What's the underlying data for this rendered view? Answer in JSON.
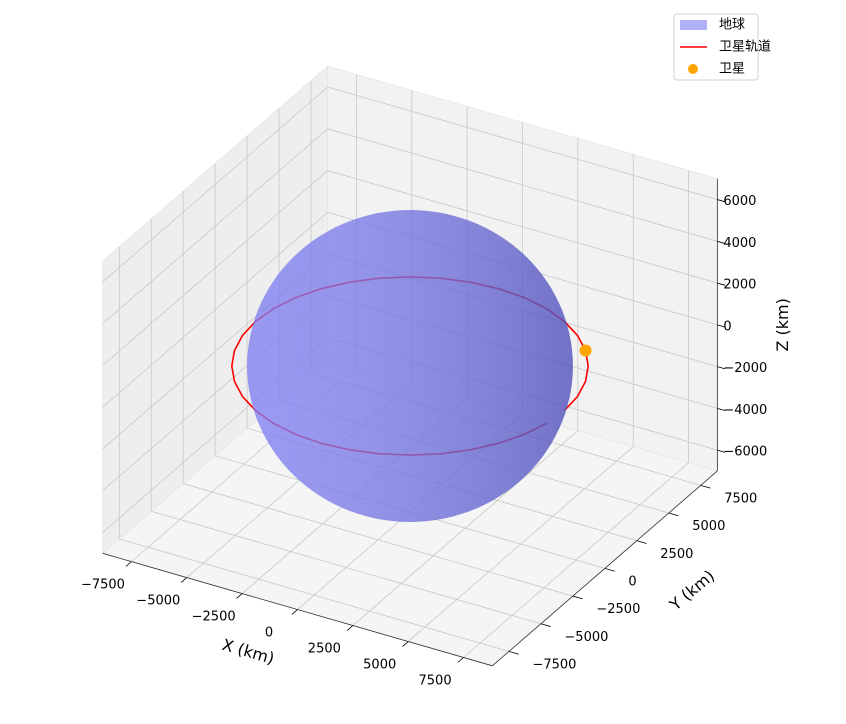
{
  "chart_data": {
    "type": "3d",
    "xlabel": "X (km)",
    "ylabel": "Y (km)",
    "zlabel": "Z (km)",
    "xlim": [
      -8800,
      8800
    ],
    "ylim": [
      -8800,
      8800
    ],
    "zlim": [
      -7000,
      7000
    ],
    "xticks": [
      {
        "value": -7500,
        "label": "−7500"
      },
      {
        "value": -5000,
        "label": "−5000"
      },
      {
        "value": -2500,
        "label": "−2500"
      },
      0,
      2500,
      5000,
      7500
    ],
    "yticks": [
      {
        "value": -7500,
        "label": "−7500"
      },
      {
        "value": -5000,
        "label": "−5000"
      },
      {
        "value": -2500,
        "label": "−2500"
      },
      0,
      2500,
      5000,
      7500
    ],
    "zticks": [
      {
        "value": -6000,
        "label": "−6000"
      },
      {
        "value": -4000,
        "label": "−4000"
      },
      {
        "value": -2000,
        "label": "−2000"
      },
      0,
      2000,
      4000,
      6000
    ],
    "grid": true,
    "legend": "upper right",
    "sphere": {
      "name": "地球",
      "radius": 6371,
      "color": "#6464f0"
    },
    "series": [
      {
        "name": "卫星轨道",
        "type": "line",
        "color": "#ff0000",
        "x": [
          6971,
          6865,
          6551,
          6037,
          5340,
          4481,
          3486,
          2384,
          1211,
          0,
          -1211,
          -2384,
          -3486,
          -4481,
          -5340,
          -6037,
          -6551,
          -6865,
          -6971,
          -6865,
          -6551,
          -6037,
          -5340,
          -4481,
          -3486,
          -2384,
          -1211,
          0,
          1211,
          2384,
          3486,
          4481,
          5340,
          6037,
          6551,
          6865
        ],
        "y": [
          0,
          1211,
          2384,
          3486,
          4481,
          5340,
          6037,
          6551,
          6865,
          6971,
          6865,
          6551,
          6037,
          5340,
          4481,
          3486,
          2384,
          1211,
          0,
          -1211,
          -2384,
          -3486,
          -4481,
          -5340,
          -6037,
          -6551,
          -6865,
          -6971,
          -6865,
          -6551,
          -6037,
          -5340,
          -4481,
          -3486,
          -2384,
          -1211
        ],
        "z": [
          0,
          0,
          0,
          0,
          0,
          0,
          0,
          0,
          0,
          0,
          0,
          0,
          0,
          0,
          0,
          0,
          0,
          0,
          0,
          0,
          0,
          0,
          0,
          0,
          0,
          0,
          0,
          0,
          0,
          0,
          0,
          0,
          0,
          0,
          0,
          0
        ]
      },
      {
        "name": "卫星",
        "type": "scatter",
        "color": "#ffa500",
        "x": [
          5340
        ],
        "y": [
          4481
        ],
        "z": [
          0
        ]
      }
    ]
  }
}
